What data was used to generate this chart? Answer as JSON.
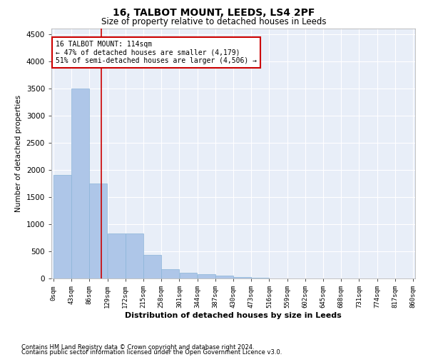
{
  "title": "16, TALBOT MOUNT, LEEDS, LS4 2PF",
  "subtitle": "Size of property relative to detached houses in Leeds",
  "xlabel": "Distribution of detached houses by size in Leeds",
  "ylabel": "Number of detached properties",
  "bar_color": "#aec6e8",
  "bar_edge_color": "#8ab4d8",
  "background_color": "#e8eef8",
  "grid_color": "#ffffff",
  "annotation_line_color": "#cc0000",
  "annotation_box_color": "#cc0000",
  "property_line_x": 114,
  "bin_edges": [
    0,
    43,
    86,
    129,
    172,
    215,
    258,
    301,
    344,
    387,
    430,
    473,
    516,
    559,
    602,
    645,
    688,
    731,
    774,
    817,
    860
  ],
  "bar_heights": [
    1900,
    3500,
    1750,
    825,
    825,
    430,
    175,
    100,
    75,
    50,
    25,
    10,
    5,
    3,
    2,
    1,
    1,
    1,
    0,
    0
  ],
  "ylim": [
    0,
    4600
  ],
  "yticks": [
    0,
    500,
    1000,
    1500,
    2000,
    2500,
    3000,
    3500,
    4000,
    4500
  ],
  "annotation_line1": "16 TALBOT MOUNT: 114sqm",
  "annotation_line2": "← 47% of detached houses are smaller (4,179)",
  "annotation_line3": "51% of semi-detached houses are larger (4,506) →",
  "footer_line1": "Contains HM Land Registry data © Crown copyright and database right 2024.",
  "footer_line2": "Contains public sector information licensed under the Open Government Licence v3.0."
}
